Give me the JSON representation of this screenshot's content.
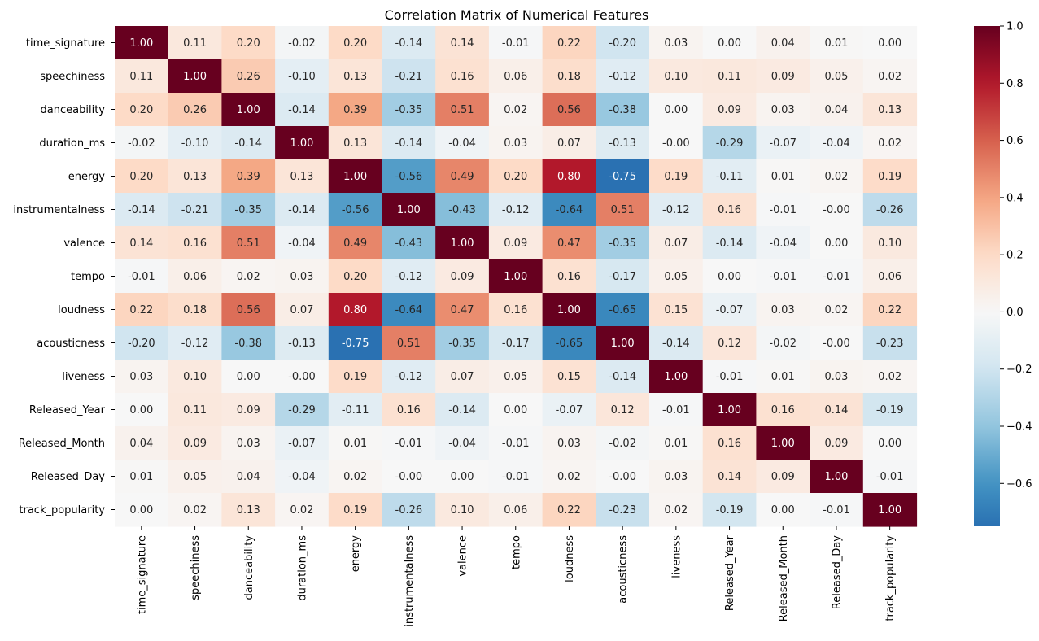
{
  "chart_data": {
    "type": "heatmap",
    "title": "Correlation Matrix of Numerical Features",
    "xlabel": "",
    "ylabel": "",
    "labels": [
      "time_signature",
      "speechiness",
      "danceability",
      "duration_ms",
      "energy",
      "instrumentalness",
      "valence",
      "tempo",
      "loudness",
      "acousticness",
      "liveness",
      "Released_Year",
      "Released_Month",
      "Released_Day",
      "track_popularity"
    ],
    "values": [
      [
        1.0,
        0.11,
        0.2,
        -0.02,
        0.2,
        -0.14,
        0.14,
        -0.01,
        0.22,
        -0.2,
        0.03,
        0.0,
        0.04,
        0.01,
        0.0
      ],
      [
        0.11,
        1.0,
        0.26,
        -0.1,
        0.13,
        -0.21,
        0.16,
        0.06,
        0.18,
        -0.12,
        0.1,
        0.11,
        0.09,
        0.05,
        0.02
      ],
      [
        0.2,
        0.26,
        1.0,
        -0.14,
        0.39,
        -0.35,
        0.51,
        0.02,
        0.56,
        -0.38,
        0.0,
        0.09,
        0.03,
        0.04,
        0.13
      ],
      [
        -0.02,
        -0.1,
        -0.14,
        1.0,
        0.13,
        -0.14,
        -0.04,
        0.03,
        0.07,
        -0.13,
        -0.0,
        -0.29,
        -0.07,
        -0.04,
        0.02
      ],
      [
        0.2,
        0.13,
        0.39,
        0.13,
        1.0,
        -0.56,
        0.49,
        0.2,
        0.8,
        -0.75,
        0.19,
        -0.11,
        0.01,
        0.02,
        0.19
      ],
      [
        -0.14,
        -0.21,
        -0.35,
        -0.14,
        -0.56,
        1.0,
        -0.43,
        -0.12,
        -0.64,
        0.51,
        -0.12,
        0.16,
        -0.01,
        -0.0,
        -0.26
      ],
      [
        0.14,
        0.16,
        0.51,
        -0.04,
        0.49,
        -0.43,
        1.0,
        0.09,
        0.47,
        -0.35,
        0.07,
        -0.14,
        -0.04,
        0.0,
        0.1
      ],
      [
        -0.01,
        0.06,
        0.02,
        0.03,
        0.2,
        -0.12,
        0.09,
        1.0,
        0.16,
        -0.17,
        0.05,
        0.0,
        -0.01,
        -0.01,
        0.06
      ],
      [
        0.22,
        0.18,
        0.56,
        0.07,
        0.8,
        -0.64,
        0.47,
        0.16,
        1.0,
        -0.65,
        0.15,
        -0.07,
        0.03,
        0.02,
        0.22
      ],
      [
        -0.2,
        -0.12,
        -0.38,
        -0.13,
        -0.75,
        0.51,
        -0.35,
        -0.17,
        -0.65,
        1.0,
        -0.14,
        0.12,
        -0.02,
        -0.0,
        -0.23
      ],
      [
        0.03,
        0.1,
        0.0,
        -0.0,
        0.19,
        -0.12,
        0.07,
        0.05,
        0.15,
        -0.14,
        1.0,
        -0.01,
        0.01,
        0.03,
        0.02
      ],
      [
        0.0,
        0.11,
        0.09,
        -0.29,
        -0.11,
        0.16,
        -0.14,
        0.0,
        -0.07,
        0.12,
        -0.01,
        1.0,
        0.16,
        0.14,
        -0.19
      ],
      [
        0.04,
        0.09,
        0.03,
        -0.07,
        0.01,
        -0.01,
        -0.04,
        -0.01,
        0.03,
        -0.02,
        0.01,
        0.16,
        1.0,
        0.09,
        0.0
      ],
      [
        0.01,
        0.05,
        0.04,
        -0.04,
        0.02,
        -0.0,
        0.0,
        -0.01,
        0.02,
        -0.0,
        0.03,
        0.14,
        0.09,
        1.0,
        -0.01
      ],
      [
        0.0,
        0.02,
        0.13,
        0.02,
        0.19,
        -0.26,
        0.1,
        0.06,
        0.22,
        -0.23,
        0.02,
        -0.19,
        0.0,
        -0.01,
        1.0
      ]
    ],
    "value_format": "0.00",
    "colormap": "RdBu_r",
    "colorbar": {
      "range": [
        -0.75,
        1.0
      ],
      "ticks": [
        -0.6,
        -0.4,
        -0.2,
        0.0,
        0.2,
        0.4,
        0.6,
        0.8,
        1.0
      ],
      "tick_labels": [
        "−0.6",
        "−0.4",
        "−0.2",
        "0.0",
        "0.2",
        "0.4",
        "0.6",
        "0.8",
        "1.0"
      ]
    },
    "grid": false
  }
}
